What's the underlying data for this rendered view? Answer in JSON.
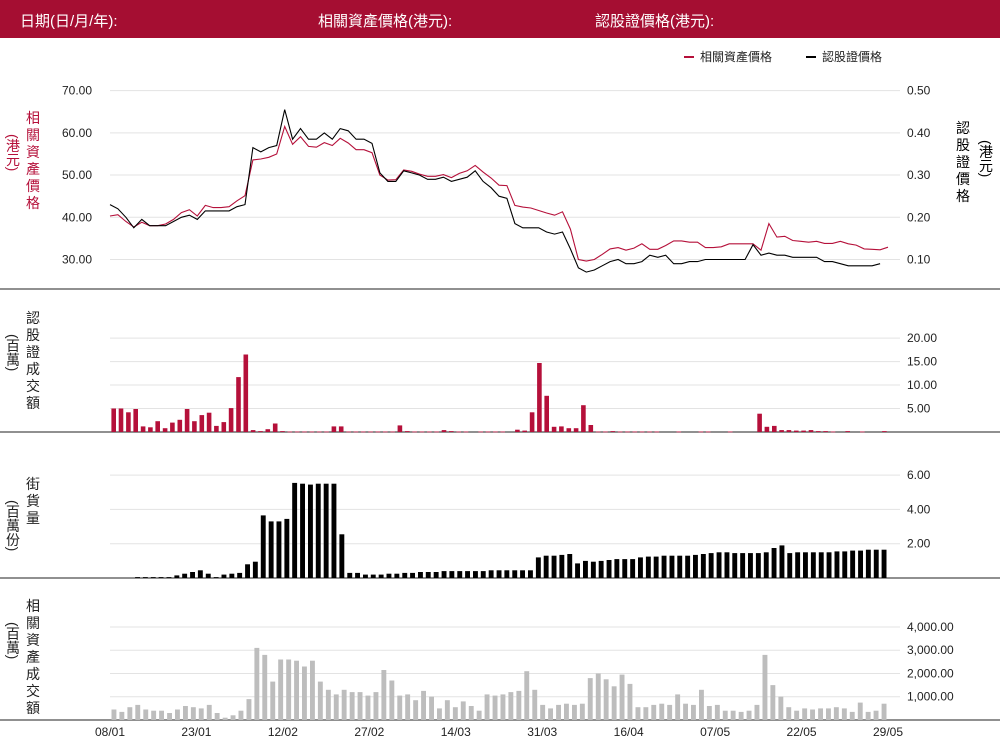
{
  "header": {
    "date_label": "日期(日/月/年):",
    "underlying_label": "相關資產價格(港元):",
    "warrant_label": "認股證價格(港元):"
  },
  "colors": {
    "header_bg": "#a50e32",
    "underlying": "#b5103a",
    "warrant": "#000000",
    "turnover_bar": "#b5103a",
    "outstanding_bar": "#000000",
    "underlying_turnover_bar": "#bdbdbd"
  },
  "chart_data": [
    {
      "type": "line",
      "title": "",
      "ylabel_left": "相關資產價格 (港元)",
      "ylabel_right": "認股證價格 (港元)",
      "legend": [
        "相關資產價格",
        "認股證價格"
      ],
      "legend_position": "top-right",
      "left_axis_ticks": [
        "30.00",
        "40.00",
        "50.00",
        "60.00",
        "70.00"
      ],
      "right_axis_ticks": [
        "0.10",
        "0.20",
        "0.30",
        "0.40",
        "0.50"
      ],
      "ylim_left": [
        23,
        73
      ],
      "ylim_right": [
        0.03,
        0.53
      ],
      "x_ticks": [
        "08/01",
        "23/01",
        "12/02",
        "27/02",
        "14/03",
        "31/03",
        "16/04",
        "07/05",
        "22/05",
        "29/05"
      ],
      "series": [
        {
          "name": "相關資產價格",
          "axis": "left",
          "values": [
            40.3,
            40.6,
            39,
            37.7,
            38.8,
            38,
            38,
            38.4,
            39.5,
            41.1,
            41.8,
            40.3,
            42.8,
            42.3,
            42.3,
            42.5,
            43.9,
            45.1,
            53.6,
            53.8,
            54.2,
            55,
            61.5,
            57.3,
            59.1,
            56.8,
            56.6,
            57.7,
            57,
            58.7,
            57.6,
            56,
            56,
            55.3,
            50,
            48.8,
            48.9,
            51.2,
            50.9,
            50.2,
            49.7,
            49.7,
            50.1,
            49.4,
            50.4,
            51,
            52.3,
            50.7,
            49.3,
            47.6,
            47.5,
            42.8,
            42.4,
            42.2,
            41.6,
            41,
            40.5,
            41.3,
            37.2,
            30,
            29.6,
            30,
            31.2,
            32.5,
            32.8,
            32.2,
            32.7,
            33.7,
            32.4,
            32.4,
            33.3,
            34.4,
            34.4,
            34.1,
            34.1,
            32.8,
            32.8,
            33,
            33.7,
            33.7,
            33.7,
            33.7,
            32.2,
            38.5,
            35.3,
            35.5,
            34.5,
            34.3,
            34.1,
            34.3,
            33.8,
            33.8,
            34.3,
            33.7,
            33.4,
            32.5,
            32.4,
            32.3,
            32.9
          ]
        },
        {
          "name": "認股證價格",
          "axis": "right",
          "values": [
            0.23,
            0.22,
            0.2,
            0.175,
            0.195,
            0.18,
            0.18,
            0.18,
            0.19,
            0.2,
            0.205,
            0.195,
            0.215,
            0.215,
            0.215,
            0.215,
            0.225,
            0.23,
            0.365,
            0.355,
            0.365,
            0.37,
            0.455,
            0.385,
            0.41,
            0.385,
            0.385,
            0.4,
            0.385,
            0.41,
            0.405,
            0.385,
            0.385,
            0.375,
            0.305,
            0.285,
            0.285,
            0.31,
            0.305,
            0.3,
            0.29,
            0.29,
            0.295,
            0.285,
            0.29,
            0.295,
            0.31,
            0.285,
            0.27,
            0.25,
            0.245,
            0.185,
            0.175,
            0.175,
            0.175,
            0.165,
            0.16,
            0.165,
            0.125,
            0.08,
            0.07,
            0.075,
            0.085,
            0.095,
            0.1,
            0.09,
            0.09,
            0.095,
            0.11,
            0.105,
            0.11,
            0.09,
            0.09,
            0.095,
            0.095,
            0.1,
            0.1,
            0.1,
            0.1,
            0.1,
            0.1,
            0.135,
            0.11,
            0.115,
            0.11,
            0.11,
            0.105,
            0.105,
            0.105,
            0.105,
            0.095,
            0.095,
            0.09,
            0.085,
            0.085,
            0.085,
            0.085,
            0.09
          ]
        }
      ]
    },
    {
      "type": "bar",
      "ylabel": "認股證成交額 (百萬)",
      "axis_ticks": [
        "5.00",
        "10.00",
        "15.00",
        "20.00"
      ],
      "ylim": [
        0,
        23
      ],
      "series": [
        {
          "name": "",
          "values": [
            5,
            5,
            4.2,
            4.9,
            1.2,
            1,
            2.3,
            0.8,
            2,
            2.6,
            4.9,
            2.3,
            3.6,
            4.1,
            1.3,
            2.1,
            5.1,
            11.7,
            16.5,
            0.4,
            0.2,
            0.6,
            1.8,
            0.2,
            0.1,
            0.1,
            0.1,
            0.1,
            0.1,
            0.1,
            1.2,
            1.2,
            0.1,
            0.1,
            0.1,
            0.1,
            0.1,
            0.1,
            0.1,
            1.4,
            0.2,
            0.1,
            0.1,
            0.1,
            0.1,
            0.4,
            0.2,
            0.1,
            0.1,
            0,
            0.1,
            0.1,
            0.1,
            0.1,
            0,
            0.5,
            0.3,
            4.2,
            14.7,
            7.7,
            1.1,
            1.2,
            0.8,
            0.8,
            5.7,
            1.5,
            0.1,
            0.1,
            0.2,
            0.1,
            0.1,
            0.1,
            0.1,
            0.1,
            0.1,
            0,
            0,
            0.1,
            0,
            0,
            0.1,
            0.1,
            0,
            0,
            0.1,
            0,
            0,
            0,
            3.9,
            1.1,
            1.3,
            0.4,
            0.4,
            0.3,
            0.3,
            0.4,
            0.2,
            0.2,
            0.1,
            0,
            0.2,
            0,
            0.1,
            0,
            0,
            0.2
          ]
        }
      ]
    },
    {
      "type": "bar",
      "ylabel": "街貨量 (百萬份)",
      "axis_ticks": [
        "2.00",
        "4.00",
        "6.00"
      ],
      "ylim": [
        0,
        6.3
      ],
      "series": [
        {
          "name": "",
          "values": [
            0,
            0,
            0,
            0.05,
            0.05,
            0.05,
            0.05,
            0.05,
            0.15,
            0.25,
            0.35,
            0.45,
            0.25,
            0.05,
            0.2,
            0.25,
            0.3,
            0.8,
            0.95,
            3.65,
            3.3,
            3.3,
            3.45,
            5.55,
            5.5,
            5.45,
            5.5,
            5.5,
            5.5,
            2.55,
            0.3,
            0.3,
            0.2,
            0.2,
            0.2,
            0.25,
            0.25,
            0.3,
            0.3,
            0.35,
            0.35,
            0.35,
            0.4,
            0.4,
            0.4,
            0.4,
            0.4,
            0.4,
            0.45,
            0.45,
            0.45,
            0.45,
            0.45,
            0.45,
            1.2,
            1.3,
            1.3,
            1.35,
            1.4,
            0.85,
            1,
            0.95,
            1,
            1.05,
            1.1,
            1.1,
            1.1,
            1.2,
            1.25,
            1.25,
            1.3,
            1.3,
            1.3,
            1.3,
            1.35,
            1.4,
            1.45,
            1.5,
            1.5,
            1.45,
            1.45,
            1.45,
            1.45,
            1.5,
            1.75,
            1.9,
            1.45,
            1.5,
            1.5,
            1.5,
            1.5,
            1.5,
            1.55,
            1.55,
            1.6,
            1.6,
            1.65,
            1.65,
            1.65
          ]
        }
      ]
    },
    {
      "type": "bar",
      "ylabel": "相關資產成交額 (百萬)",
      "axis_ticks": [
        "1,000.00",
        "2,000.00",
        "3,000.00",
        "4,000.00"
      ],
      "ylim": [
        0,
        4600
      ],
      "series": [
        {
          "name": "",
          "values": [
            450,
            350,
            550,
            650,
            450,
            400,
            400,
            300,
            450,
            600,
            550,
            500,
            650,
            300,
            100,
            200,
            400,
            900,
            3100,
            2800,
            1650,
            2600,
            2600,
            2550,
            2300,
            2550,
            1650,
            1300,
            1100,
            1300,
            1200,
            1200,
            1050,
            1200,
            2150,
            1700,
            1050,
            1100,
            850,
            1250,
            1000,
            500,
            850,
            550,
            800,
            600,
            400,
            1100,
            1050,
            1100,
            1200,
            1250,
            2100,
            1300,
            650,
            500,
            650,
            700,
            650,
            700,
            1800,
            2000,
            1750,
            1450,
            1950,
            1550,
            550,
            550,
            650,
            700,
            650,
            1100,
            700,
            650,
            1300,
            600,
            650,
            400,
            400,
            350,
            400,
            650,
            2800,
            1500,
            1000,
            550,
            400,
            500,
            450,
            500,
            500,
            550,
            500,
            350,
            750,
            350,
            400,
            700
          ]
        }
      ]
    }
  ]
}
